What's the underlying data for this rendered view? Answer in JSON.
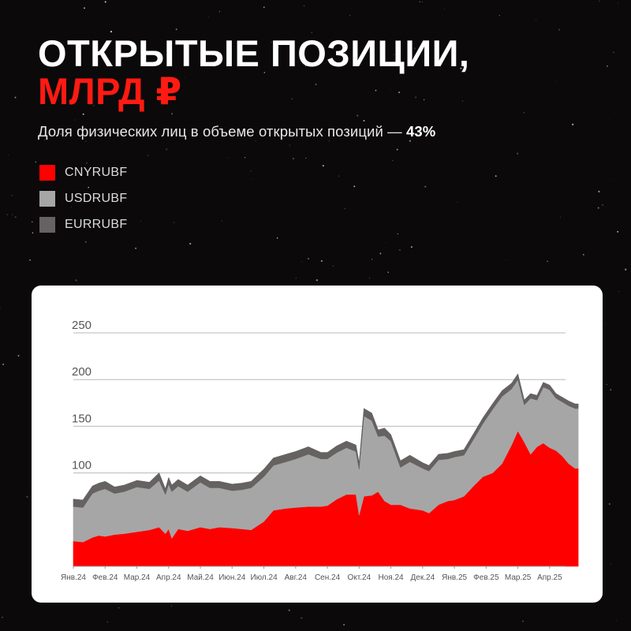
{
  "header": {
    "title_line1": "ОТКРЫТЫЕ ПОЗИЦИИ,",
    "title_line2": "МЛРД ₽",
    "subtitle_text": "Доля физических лиц в объеме открытых позиций — ",
    "subtitle_value": "43%"
  },
  "colors": {
    "accent": "#ff1a12",
    "cny": "#ff0000",
    "usd": "#a6a6a6",
    "eur": "#666262",
    "background": "#0b0909"
  },
  "legend": [
    {
      "label": "CNYRUBF",
      "color": "#ff0000"
    },
    {
      "label": "USDRUBF",
      "color": "#a6a6a6"
    },
    {
      "label": "EURRUBF",
      "color": "#666262"
    }
  ],
  "chart_data": {
    "type": "area",
    "stacked": true,
    "title": "",
    "xlabel": "",
    "ylabel": "",
    "ylim": [
      0,
      250
    ],
    "yticks": [
      100,
      150,
      200,
      250
    ],
    "grid": true,
    "x_labels": [
      "Янв.24",
      "Фев.24",
      "Мар.24",
      "Апр.24",
      "Май.24",
      "Июн.24",
      "Июл.24",
      "Авг.24",
      "Сен.24",
      "Окт.24",
      "Ноя.24",
      "Дек.24",
      "Янв.25",
      "Фев.25",
      "Мар.25",
      "Апр.25"
    ],
    "x": [
      0,
      0.3,
      0.6,
      0.8,
      1.0,
      1.3,
      1.6,
      2.0,
      2.4,
      2.7,
      2.9,
      3.0,
      3.1,
      3.3,
      3.6,
      4.0,
      4.3,
      4.6,
      5.0,
      5.3,
      5.6,
      6.0,
      6.3,
      6.7,
      7.0,
      7.4,
      7.8,
      8.0,
      8.3,
      8.6,
      8.9,
      9.0,
      9.15,
      9.4,
      9.6,
      9.8,
      10.0,
      10.3,
      10.6,
      11.0,
      11.2,
      11.5,
      11.8,
      12.0,
      12.3,
      12.6,
      12.9,
      13.2,
      13.5,
      13.8,
      14.0,
      14.2,
      14.4,
      14.6,
      14.8,
      15.0,
      15.2,
      15.4,
      15.6,
      15.8,
      15.9
    ],
    "series": [
      {
        "name": "CNYRUBF",
        "values": [
          27,
          26,
          31,
          33,
          32,
          34,
          35,
          37,
          39,
          42,
          35,
          40,
          30,
          40,
          38,
          42,
          40,
          42,
          41,
          40,
          39,
          48,
          60,
          62,
          63,
          64,
          64,
          65,
          72,
          77,
          77,
          55,
          75,
          76,
          80,
          70,
          66,
          66,
          62,
          60,
          57,
          66,
          70,
          71,
          75,
          86,
          96,
          100,
          110,
          130,
          145,
          133,
          120,
          128,
          132,
          127,
          124,
          118,
          110,
          105,
          105
        ]
      },
      {
        "name": "USDRUBF",
        "values": [
          37,
          37,
          47,
          48,
          51,
          44,
          45,
          48,
          44,
          50,
          42,
          48,
          50,
          46,
          42,
          48,
          44,
          42,
          40,
          42,
          45,
          48,
          48,
          50,
          52,
          56,
          51,
          50,
          50,
          50,
          46,
          49,
          86,
          80,
          59,
          70,
          68,
          40,
          50,
          45,
          45,
          48,
          45,
          46,
          44,
          50,
          57,
          68,
          72,
          60,
          55,
          40,
          60,
          50,
          60,
          62,
          56,
          58,
          62,
          64,
          64
        ]
      },
      {
        "name": "EURRUBF",
        "values": [
          8,
          8,
          8,
          8,
          8,
          7,
          7,
          7,
          7,
          8,
          6,
          7,
          7,
          7,
          7,
          7,
          7,
          7,
          7,
          7,
          7,
          8,
          8,
          8,
          8,
          8,
          7,
          7,
          7,
          7,
          7,
          7,
          8,
          8,
          7,
          8,
          7,
          7,
          7,
          6,
          6,
          6,
          6,
          6,
          6,
          6,
          6,
          6,
          6,
          6,
          6,
          5,
          5,
          5,
          5,
          5,
          5,
          5,
          5,
          5,
          5
        ]
      }
    ]
  }
}
